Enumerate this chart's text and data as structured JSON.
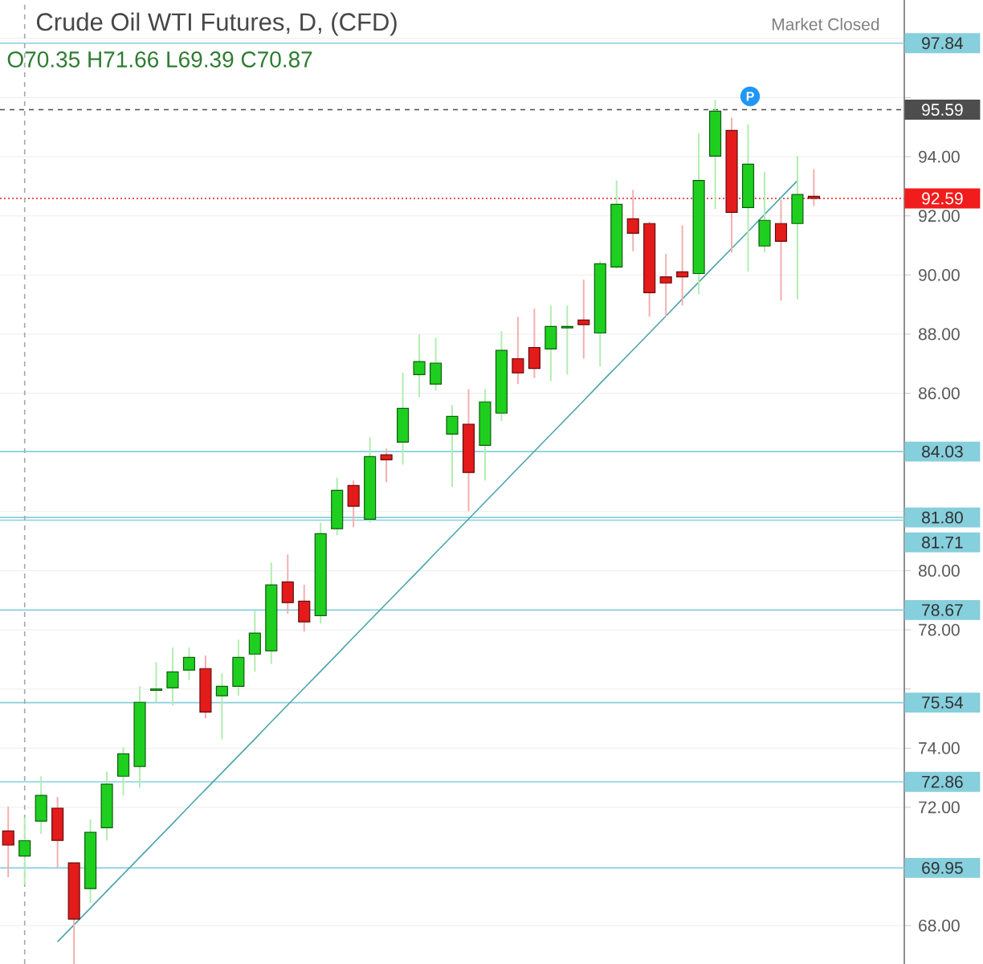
{
  "chart_data": {
    "type": "candlestick",
    "title": "Crude Oil WTI Futures, D, (CFD)",
    "subtitle": "O70.35  H71.66  L69.39  C70.87",
    "annotations": [
      "Market Closed",
      "P"
    ],
    "categories": [
      null,
      null,
      null,
      null,
      null,
      null,
      null,
      null,
      null,
      null,
      null,
      null,
      null,
      null,
      null,
      null,
      null,
      null,
      null,
      null,
      null,
      null,
      null,
      null,
      null,
      null,
      null,
      null,
      null,
      null,
      null,
      null,
      null,
      null,
      null,
      null,
      null,
      null,
      null,
      null,
      null,
      null,
      null,
      null,
      null,
      null,
      null,
      null,
      null,
      null,
      null,
      null,
      null,
      null,
      null
    ],
    "ohlc": [
      [
        71.2,
        72.02,
        69.63,
        70.72
      ],
      [
        70.35,
        71.66,
        69.39,
        70.87
      ],
      [
        71.53,
        73.05,
        71.1,
        72.4
      ],
      [
        71.97,
        72.35,
        69.96,
        70.88
      ],
      [
        70.12,
        70.12,
        66.7,
        68.22
      ],
      [
        69.25,
        71.59,
        68.76,
        71.15
      ],
      [
        71.31,
        73.21,
        70.88,
        72.78
      ],
      [
        73.05,
        74.03,
        72.4,
        73.81
      ],
      [
        73.38,
        76.09,
        72.67,
        75.55
      ],
      [
        75.95,
        76.91,
        75.55,
        76.0
      ],
      [
        76.04,
        77.4,
        75.44,
        76.58
      ],
      [
        76.64,
        77.4,
        76.31,
        77.07
      ],
      [
        76.69,
        77.13,
        75.01,
        75.22
      ],
      [
        75.77,
        76.53,
        74.3,
        76.09
      ],
      [
        76.09,
        77.67,
        75.77,
        77.07
      ],
      [
        77.18,
        78.65,
        76.58,
        77.89
      ],
      [
        77.29,
        80.28,
        76.85,
        79.52
      ],
      [
        79.62,
        80.55,
        78.54,
        78.92
      ],
      [
        78.97,
        79.52,
        77.94,
        78.27
      ],
      [
        78.48,
        81.63,
        78.21,
        81.25
      ],
      [
        81.42,
        83.15,
        81.2,
        82.72
      ],
      [
        82.88,
        83.05,
        81.47,
        82.18
      ],
      [
        81.74,
        84.51,
        81.63,
        83.86
      ],
      [
        83.92,
        84.13,
        82.99,
        83.75
      ],
      [
        84.35,
        86.69,
        83.59,
        85.49
      ],
      [
        86.63,
        87.99,
        85.87,
        87.07
      ],
      [
        86.31,
        87.88,
        86.09,
        87.02
      ],
      [
        84.62,
        85.6,
        82.83,
        85.22
      ],
      [
        84.95,
        86.14,
        82.01,
        83.32
      ],
      [
        84.24,
        86.14,
        83.05,
        85.71
      ],
      [
        85.33,
        88.1,
        85.06,
        87.45
      ],
      [
        87.17,
        88.59,
        86.31,
        86.69
      ],
      [
        87.55,
        88.86,
        86.52,
        86.84
      ],
      [
        87.5,
        88.97,
        86.41,
        88.26
      ],
      [
        88.21,
        88.97,
        86.63,
        88.26
      ],
      [
        88.48,
        89.84,
        87.17,
        88.32
      ],
      [
        88.04,
        90.49,
        86.9,
        90.38
      ],
      [
        90.27,
        93.2,
        90.22,
        92.39
      ],
      [
        91.9,
        92.88,
        90.81,
        91.41
      ],
      [
        91.74,
        91.8,
        88.59,
        89.4
      ],
      [
        89.94,
        90.71,
        88.59,
        89.73
      ],
      [
        90.11,
        91.68,
        88.97,
        89.94
      ],
      [
        90.05,
        94.78,
        89.35,
        93.2
      ],
      [
        94.02,
        95.92,
        92.23,
        95.54
      ],
      [
        94.89,
        95.32,
        90.76,
        92.12
      ],
      [
        92.28,
        95.1,
        90.11,
        93.75
      ],
      [
        90.98,
        93.48,
        90.76,
        91.85
      ],
      [
        91.74,
        92.55,
        89.13,
        91.14
      ],
      [
        91.74,
        94.02,
        89.18,
        92.72
      ],
      [
        92.66,
        93.58,
        92.33,
        92.59
      ],
      null,
      null,
      null,
      null,
      null
    ],
    "colors": [
      "#e31b1b",
      "#1fcf1f",
      "#1fcf1f",
      "#e31b1b",
      "#e31b1b",
      "#1fcf1f",
      "#1fcf1f",
      "#1fcf1f",
      "#1fcf1f",
      "#1fcf1f",
      "#1fcf1f",
      "#1fcf1f",
      "#e31b1b",
      "#1fcf1f",
      "#1fcf1f",
      "#1fcf1f",
      "#1fcf1f",
      "#e31b1b",
      "#e31b1b",
      "#1fcf1f",
      "#1fcf1f",
      "#e31b1b",
      "#1fcf1f",
      "#e31b1b",
      "#1fcf1f",
      "#1fcf1f",
      "#1fcf1f",
      "#1fcf1f",
      "#e31b1b",
      "#1fcf1f",
      "#1fcf1f",
      "#e31b1b",
      "#e31b1b",
      "#1fcf1f",
      "#1fcf1f",
      "#e31b1b",
      "#1fcf1f",
      "#1fcf1f",
      "#e31b1b",
      "#e31b1b",
      "#e31b1b",
      "#e31b1b",
      "#1fcf1f",
      "#1fcf1f",
      "#e31b1b",
      "#1fcf1f",
      "#1fcf1f",
      "#e31b1b",
      "#1fcf1f",
      "#e31b1b",
      null,
      null,
      null,
      null,
      null
    ],
    "series": [
      {
        "type": "line",
        "color": "#4ba5a8",
        "values": [
          null,
          null,
          null,
          67.45,
          68.02,
          68.59,
          69.17,
          69.74,
          70.31,
          70.88,
          71.45,
          72.03,
          72.6,
          73.17,
          73.74,
          74.31,
          74.89,
          75.46,
          76.03,
          76.6,
          77.17,
          77.75,
          78.32,
          78.89,
          79.46,
          80.03,
          80.61,
          81.18,
          81.75,
          82.32,
          82.89,
          83.47,
          84.04,
          84.61,
          85.18,
          85.75,
          86.33,
          86.9,
          87.47,
          88.04,
          88.61,
          89.19,
          89.76,
          90.33,
          90.9,
          91.47,
          92.05,
          92.62,
          93.19,
          null,
          null,
          null,
          null,
          null,
          null
        ]
      }
    ],
    "ylim": [
      66.7,
      99.3
    ],
    "yticks": [
      {
        "value": 68,
        "label": "68.00"
      },
      {
        "value": 72,
        "label": "72.00"
      },
      {
        "value": 74,
        "label": "74.00"
      },
      {
        "value": 76,
        "label": null
      },
      {
        "value": 78,
        "label": "78.00"
      },
      {
        "value": 80,
        "label": "80.00"
      },
      {
        "value": 82,
        "label": null
      },
      {
        "value": 86,
        "label": "86.00"
      },
      {
        "value": 88,
        "label": "88.00"
      },
      {
        "value": 90,
        "label": "90.00"
      },
      {
        "value": 92,
        "label": "92.00"
      },
      {
        "value": 94,
        "label": "94.00"
      },
      {
        "value": 96,
        "label": null
      },
      {
        "value": 98,
        "label": null
      }
    ],
    "ref_lines": [
      {
        "axis": "y",
        "value": 97.84,
        "label": "97.84",
        "color": "#86cfdd"
      },
      {
        "axis": "y",
        "value": 95.59,
        "label": "95.59",
        "color": "#4d4d4d",
        "line_style": "dashed"
      },
      {
        "axis": "y",
        "value": 92.59,
        "label": "92.59",
        "color": "#f21c1c",
        "line_style": "dotted"
      },
      {
        "axis": "y",
        "value": 84.03,
        "label": "84.03",
        "color": "#86cfdd"
      },
      {
        "axis": "y",
        "value": 81.8,
        "label": "81.80",
        "color": "#86cfdd"
      },
      {
        "axis": "y",
        "value": 81.71,
        "label": "81.71",
        "color": "#86cfdd"
      },
      {
        "axis": "y",
        "value": 78.67,
        "label": "78.67",
        "color": "#86cfdd"
      },
      {
        "axis": "y",
        "value": 75.54,
        "label": "75.54",
        "color": "#86cfdd"
      },
      {
        "axis": "y",
        "value": 72.86,
        "label": "72.86",
        "color": "#86cfdd"
      },
      {
        "axis": "y",
        "value": 69.95,
        "label": "69.95",
        "color": "#86cfdd"
      }
    ],
    "grid": "y",
    "tick_labels": "y"
  }
}
